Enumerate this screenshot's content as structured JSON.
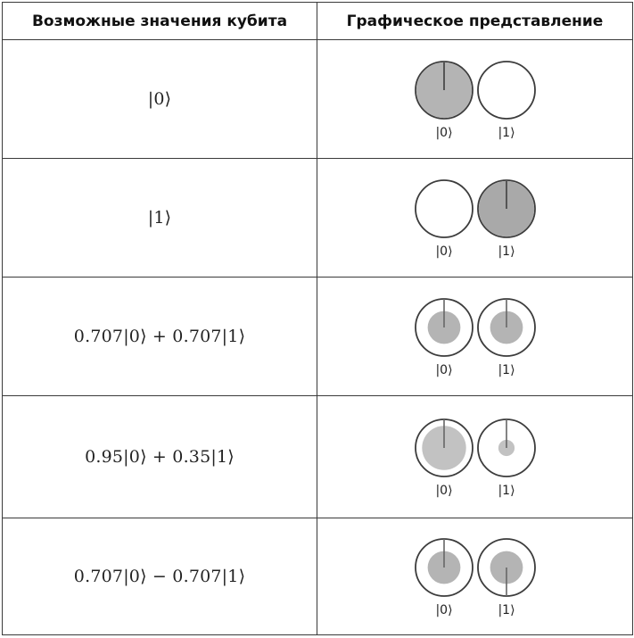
{
  "header": {
    "col1": "Возможные значения кубита",
    "col2": "Графическое представление"
  },
  "rows": [
    {
      "formula": "|0⟩",
      "circles": [
        {
          "label": "|0⟩",
          "ring": false,
          "magnitude": 1.0,
          "phase_deg": 0,
          "fill": "#b4b4b4"
        },
        {
          "label": "|1⟩",
          "ring": false,
          "magnitude": 0.0,
          "phase_deg": 0,
          "fill": "#b4b4b4"
        }
      ]
    },
    {
      "formula": "|1⟩",
      "circles": [
        {
          "label": "|0⟩",
          "ring": false,
          "magnitude": 0.0,
          "phase_deg": 0,
          "fill": "#b4b4b4"
        },
        {
          "label": "|1⟩",
          "ring": false,
          "magnitude": 1.0,
          "phase_deg": 0,
          "fill": "#a9a9a9"
        }
      ]
    },
    {
      "formula": "0.707|0⟩ + 0.707|1⟩",
      "circles": [
        {
          "label": "|0⟩",
          "ring": true,
          "magnitude": 0.707,
          "phase_deg": 0,
          "fill": "#b4b4b4"
        },
        {
          "label": "|1⟩",
          "ring": true,
          "magnitude": 0.707,
          "phase_deg": 0,
          "fill": "#b4b4b4"
        }
      ]
    },
    {
      "formula": "0.95|0⟩ + 0.35|1⟩",
      "circles": [
        {
          "label": "|0⟩",
          "ring": true,
          "magnitude": 0.95,
          "phase_deg": 0,
          "fill": "#c2c2c2"
        },
        {
          "label": "|1⟩",
          "ring": true,
          "magnitude": 0.35,
          "phase_deg": 0,
          "fill": "#c2c2c2"
        }
      ]
    },
    {
      "formula": "0.707|0⟩ − 0.707|1⟩",
      "circles": [
        {
          "label": "|0⟩",
          "ring": true,
          "magnitude": 0.707,
          "phase_deg": 0,
          "fill": "#b4b4b4"
        },
        {
          "label": "|1⟩",
          "ring": true,
          "magnitude": 0.707,
          "phase_deg": 180,
          "fill": "#b4b4b4"
        }
      ]
    }
  ]
}
